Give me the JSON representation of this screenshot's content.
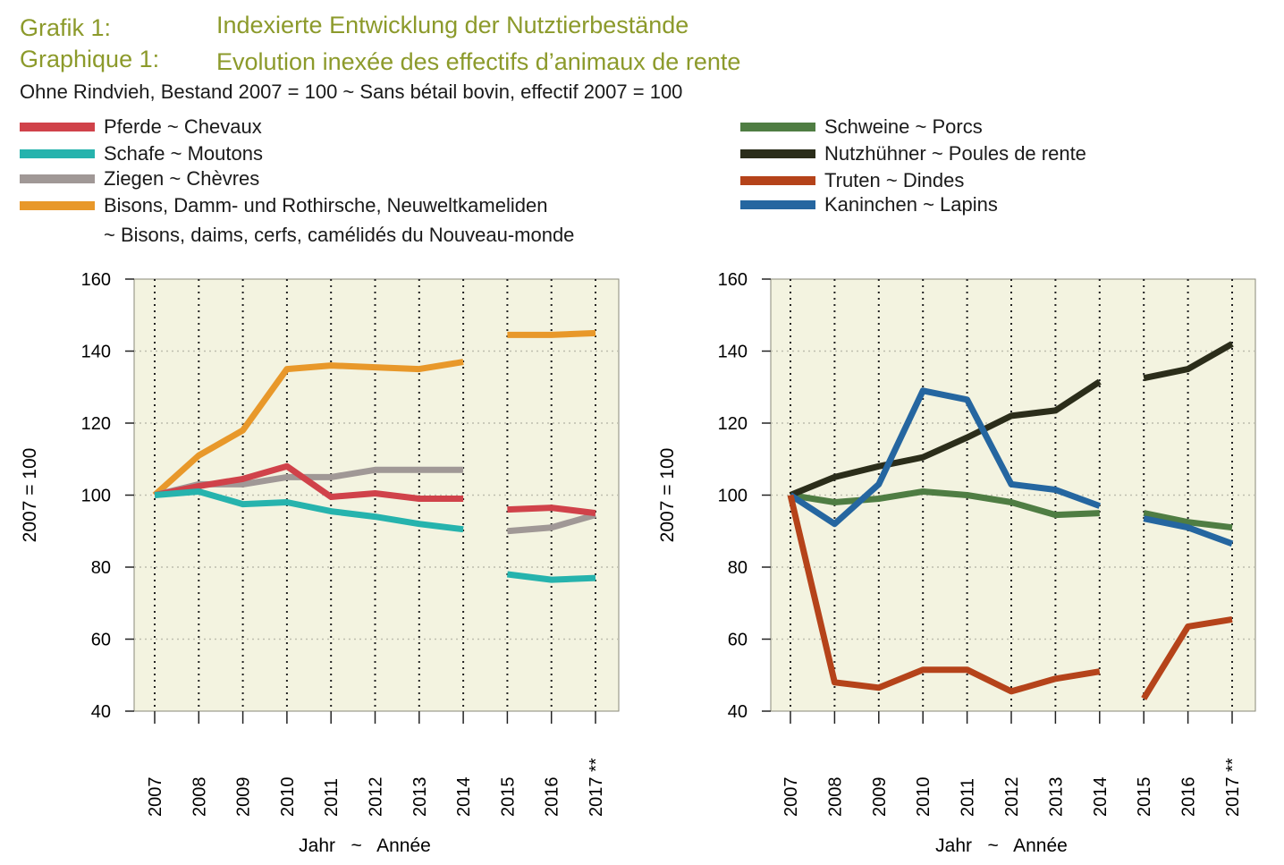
{
  "header": {
    "label1": "Grafik 1:",
    "label2": "Graphique 1:",
    "title_de": "Indexierte Entwicklung der Nutztierbestände",
    "title_fr": "Evolution inexée des effectifs d’animaux de rente",
    "subtitle": "Ohne Rindvieh, Bestand 2007 = 100   ~   Sans bétail bovin, effectif 2007 = 100"
  },
  "legend": {
    "left": [
      {
        "label": "Pferde   ~   Chevaux",
        "color": "#d0424a"
      },
      {
        "label": "Schafe   ~   Moutons",
        "color": "#26b3ad"
      },
      {
        "label": "Ziegen   ~   Chèvres",
        "color": "#a09896"
      },
      {
        "label": "Bisons, Damm- und Rothirsche, Neuweltkameliden",
        "color": "#e8982a"
      }
    ],
    "left_continuation": "~   Bisons, daims, cerfs, camélidés du Nouveau-monde",
    "right": [
      {
        "label": "Schweine   ~   Porcs",
        "color": "#4f7d43"
      },
      {
        "label": "Nutzhühner   ~   Poules de rente",
        "color": "#2b2d1a"
      },
      {
        "label": "Truten   ~   Dindes",
        "color": "#b5431a"
      },
      {
        "label": "Kaninchen   ~   Lapins",
        "color": "#2566a0"
      }
    ]
  },
  "chart_data": [
    {
      "type": "line",
      "x": [
        "2007",
        "2008",
        "2009",
        "2010",
        "2011",
        "2012",
        "2013",
        "2014",
        "2015",
        "2016",
        "2017 **"
      ],
      "ylabel": "2007 = 100",
      "xlabel": "Jahr   ~   Année",
      "ylim": [
        40,
        160
      ],
      "yticks": [
        40,
        60,
        80,
        100,
        120,
        140,
        160
      ],
      "grid": "vertical dotted",
      "background": "#f3f3e0",
      "series": [
        {
          "name": "Bisons, Damm- und Rothirsche, Neuweltkameliden",
          "color": "#e8982a",
          "values": [
            100,
            111,
            118,
            135,
            136,
            135.5,
            135,
            137,
            144.5,
            144.5,
            145
          ]
        },
        {
          "name": "Ziegen",
          "color": "#a09896",
          "values": [
            100,
            103,
            103,
            105,
            105,
            107,
            107,
            107,
            90,
            91,
            94.5
          ]
        },
        {
          "name": "Pferde",
          "color": "#d0424a",
          "values": [
            100,
            102.5,
            104.5,
            108,
            99.5,
            100.5,
            99,
            99,
            96,
            96.5,
            95
          ]
        },
        {
          "name": "Schafe",
          "color": "#26b3ad",
          "values": [
            100,
            101,
            97.5,
            98,
            95.5,
            94,
            92,
            90.5,
            78,
            76.5,
            77
          ]
        }
      ]
    },
    {
      "type": "line",
      "x": [
        "2007",
        "2008",
        "2009",
        "2010",
        "2011",
        "2012",
        "2013",
        "2014",
        "2015",
        "2016",
        "2017 **"
      ],
      "ylabel": "2007 = 100",
      "xlabel": "Jahr   ~   Année",
      "ylim": [
        40,
        160
      ],
      "yticks": [
        40,
        60,
        80,
        100,
        120,
        140,
        160
      ],
      "grid": "vertical dotted",
      "background": "#f3f3e0",
      "series": [
        {
          "name": "Schweine",
          "color": "#4f7d43",
          "values": [
            100,
            98,
            99,
            101,
            100,
            98,
            94.5,
            95,
            95,
            92.5,
            91
          ]
        },
        {
          "name": "Nutzhühner",
          "color": "#2b2d1a",
          "values": [
            100,
            105,
            108,
            110.5,
            116,
            122,
            123.5,
            131.5,
            132.5,
            135,
            142
          ]
        },
        {
          "name": "Kaninchen",
          "color": "#2566a0",
          "values": [
            100,
            92,
            103,
            129,
            126.5,
            103,
            101.5,
            97,
            93.5,
            91,
            86.5
          ]
        },
        {
          "name": "Truten",
          "color": "#b5431a",
          "values": [
            100,
            48,
            46.5,
            51.5,
            51.5,
            45.5,
            49,
            51,
            43.5,
            63.5,
            65.5
          ]
        }
      ]
    }
  ]
}
